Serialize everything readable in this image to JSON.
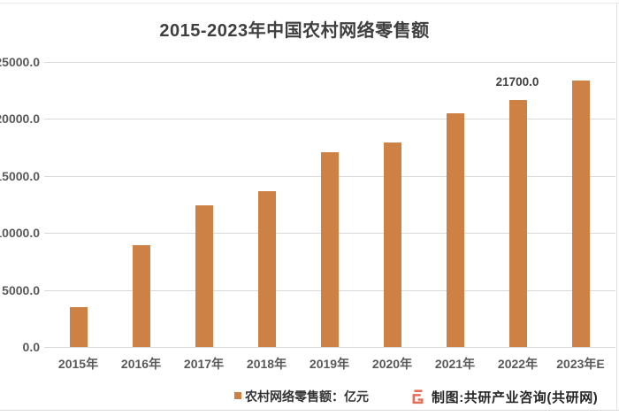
{
  "chart_data": {
    "type": "bar",
    "title": "2015-2023年中国农村网络零售额",
    "categories": [
      "2015年",
      "2016年",
      "2017年",
      "2018年",
      "2019年",
      "2020年",
      "2021年",
      "2022年",
      "2023年E"
    ],
    "values": [
      3530,
      8945,
      12400,
      13700,
      17100,
      17900,
      20500,
      21700,
      23400
    ],
    "bar_labels": [
      null,
      null,
      null,
      null,
      null,
      null,
      null,
      "21700.0",
      null
    ],
    "series_name": "农村网络零售额",
    "unit": "亿元",
    "ylim": [
      0,
      25000
    ],
    "ytick_labels": [
      "0.0",
      "5000.0",
      "10000.0",
      "15000.0",
      "20000.0",
      "25000.0"
    ],
    "grid": true,
    "legend_position": "bottom",
    "bar_color": "#ce8145",
    "gridline_color": "#d9d9d9"
  },
  "legend": {
    "marker_color": "#ce8145",
    "label": "农村网络零售额：亿元"
  },
  "footer": {
    "logo_icon": "gongyanwang-logo",
    "logo_color": "#e56e58",
    "credit": "制图:共研产业咨询(共研网)"
  }
}
